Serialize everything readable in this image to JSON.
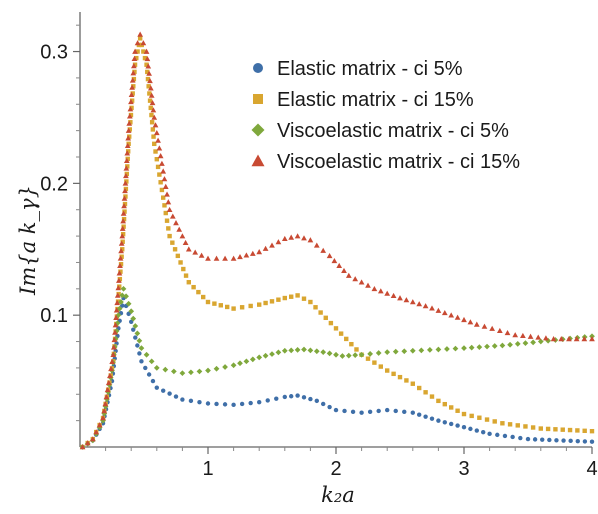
{
  "chart_data": {
    "type": "scatter",
    "xlabel": "k₂a",
    "ylabel": "Im{a k_γ}",
    "xlim": [
      0,
      4
    ],
    "ylim": [
      0,
      0.33
    ],
    "x_ticks": [
      "1",
      "2",
      "3",
      "4"
    ],
    "y_ticks": [
      "0.1",
      "0.2",
      "0.3"
    ],
    "x_tick_values": [
      1,
      2,
      3,
      4
    ],
    "y_tick_values": [
      0.1,
      0.2,
      0.3
    ],
    "legend_placement": "top-right",
    "series": [
      {
        "name": "Elastic matrix - ci 5%",
        "color": "#3F6FA8",
        "marker": "circle",
        "points": [
          [
            0.02,
            0.0
          ],
          [
            0.1,
            0.005
          ],
          [
            0.18,
            0.018
          ],
          [
            0.25,
            0.05
          ],
          [
            0.3,
            0.09
          ],
          [
            0.34,
            0.113
          ],
          [
            0.4,
            0.095
          ],
          [
            0.48,
            0.065
          ],
          [
            0.6,
            0.045
          ],
          [
            0.8,
            0.036
          ],
          [
            1.0,
            0.033
          ],
          [
            1.2,
            0.032
          ],
          [
            1.4,
            0.034
          ],
          [
            1.6,
            0.038
          ],
          [
            1.7,
            0.039
          ],
          [
            1.85,
            0.035
          ],
          [
            2.0,
            0.028
          ],
          [
            2.2,
            0.026
          ],
          [
            2.4,
            0.028
          ],
          [
            2.6,
            0.026
          ],
          [
            2.8,
            0.02
          ],
          [
            3.0,
            0.015
          ],
          [
            3.2,
            0.01
          ],
          [
            3.5,
            0.006
          ],
          [
            4.0,
            0.004
          ]
        ]
      },
      {
        "name": "Elastic matrix - ci 15%",
        "color": "#D9A630",
        "marker": "square",
        "points": [
          [
            0.02,
            0.0
          ],
          [
            0.1,
            0.006
          ],
          [
            0.18,
            0.022
          ],
          [
            0.26,
            0.065
          ],
          [
            0.33,
            0.15
          ],
          [
            0.38,
            0.23
          ],
          [
            0.43,
            0.29
          ],
          [
            0.47,
            0.31
          ],
          [
            0.52,
            0.29
          ],
          [
            0.58,
            0.23
          ],
          [
            0.7,
            0.16
          ],
          [
            0.85,
            0.125
          ],
          [
            1.0,
            0.11
          ],
          [
            1.2,
            0.105
          ],
          [
            1.4,
            0.108
          ],
          [
            1.6,
            0.113
          ],
          [
            1.7,
            0.115
          ],
          [
            1.8,
            0.11
          ],
          [
            2.0,
            0.09
          ],
          [
            2.2,
            0.07
          ],
          [
            2.4,
            0.058
          ],
          [
            2.6,
            0.048
          ],
          [
            2.8,
            0.035
          ],
          [
            3.0,
            0.025
          ],
          [
            3.3,
            0.018
          ],
          [
            3.6,
            0.014
          ],
          [
            4.0,
            0.012
          ]
        ]
      },
      {
        "name": "Viscoelastic matrix - ci 5%",
        "color": "#7FA83C",
        "marker": "diamond",
        "points": [
          [
            0.02,
            0.0
          ],
          [
            0.1,
            0.005
          ],
          [
            0.18,
            0.02
          ],
          [
            0.25,
            0.058
          ],
          [
            0.3,
            0.1
          ],
          [
            0.34,
            0.12
          ],
          [
            0.4,
            0.103
          ],
          [
            0.48,
            0.075
          ],
          [
            0.6,
            0.06
          ],
          [
            0.8,
            0.056
          ],
          [
            1.0,
            0.058
          ],
          [
            1.2,
            0.062
          ],
          [
            1.4,
            0.068
          ],
          [
            1.6,
            0.073
          ],
          [
            1.75,
            0.074
          ],
          [
            1.9,
            0.072
          ],
          [
            2.05,
            0.069
          ],
          [
            2.2,
            0.07
          ],
          [
            2.4,
            0.072
          ],
          [
            2.6,
            0.073
          ],
          [
            2.8,
            0.074
          ],
          [
            3.0,
            0.075
          ],
          [
            3.3,
            0.077
          ],
          [
            3.6,
            0.08
          ],
          [
            4.0,
            0.084
          ]
        ]
      },
      {
        "name": "Viscoelastic matrix - ci 15%",
        "color": "#C84A33",
        "marker": "triangle",
        "points": [
          [
            0.02,
            0.0
          ],
          [
            0.1,
            0.006
          ],
          [
            0.18,
            0.022
          ],
          [
            0.26,
            0.07
          ],
          [
            0.33,
            0.16
          ],
          [
            0.38,
            0.24
          ],
          [
            0.43,
            0.3
          ],
          [
            0.47,
            0.313
          ],
          [
            0.52,
            0.3
          ],
          [
            0.58,
            0.25
          ],
          [
            0.7,
            0.18
          ],
          [
            0.85,
            0.15
          ],
          [
            1.0,
            0.143
          ],
          [
            1.2,
            0.143
          ],
          [
            1.4,
            0.148
          ],
          [
            1.6,
            0.158
          ],
          [
            1.7,
            0.16
          ],
          [
            1.8,
            0.157
          ],
          [
            1.95,
            0.145
          ],
          [
            2.1,
            0.13
          ],
          [
            2.3,
            0.12
          ],
          [
            2.5,
            0.113
          ],
          [
            2.7,
            0.107
          ],
          [
            2.9,
            0.1
          ],
          [
            3.1,
            0.093
          ],
          [
            3.4,
            0.085
          ],
          [
            3.7,
            0.082
          ],
          [
            4.0,
            0.082
          ]
        ]
      }
    ]
  }
}
